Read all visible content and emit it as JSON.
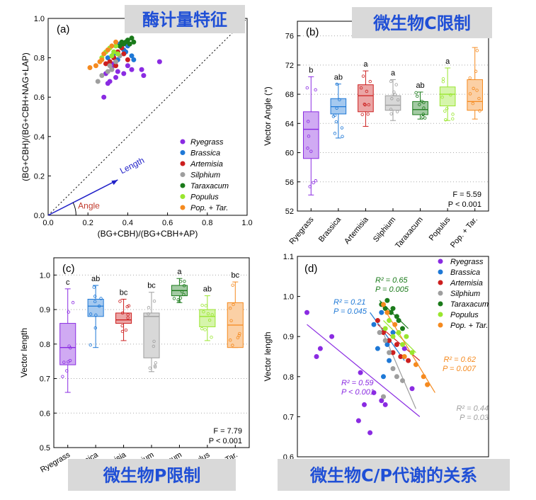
{
  "colors": {
    "Ryegrass": "#8a2be2",
    "Brassica": "#1e78d6",
    "Artemisia": "#cc1f1f",
    "Silphium": "#9e9e9e",
    "Taraxacum": "#1a7a1a",
    "Populus": "#99e62e",
    "Pop. + Tar.": "#f58a1f"
  },
  "species_labels": [
    "Ryegrass",
    "Brassica",
    "Artemisia",
    "Silphium",
    "Taraxacum",
    "Populus",
    "Pop. + Tar."
  ],
  "banners": {
    "a": "酶计量特征",
    "b": "微生物C限制",
    "c": "微生物P限制",
    "d": "微生物C/P代谢的关系"
  },
  "chart_data": [
    {
      "panel": "(a)",
      "type": "scatter",
      "xlabel": "(BG+CBH)/(BG+CBH+AP)",
      "ylabel": "(BG+CBH)/(BG+CBH+NAG+LAP)",
      "xlim": [
        0,
        1.0
      ],
      "ylim": [
        0,
        1.0
      ],
      "xticks": [
        "0.0",
        "0.2",
        "0.4",
        "0.6",
        "0.8",
        "1.0"
      ],
      "yticks": [
        "0.0",
        "0.2",
        "0.4",
        "0.6",
        "0.8",
        "1.0"
      ],
      "annotations": [
        "Length",
        "Angle"
      ],
      "legend_position": "bottom-right",
      "series": [
        {
          "name": "Ryegrass",
          "points": [
            [
              0.28,
              0.6
            ],
            [
              0.3,
              0.67
            ],
            [
              0.29,
              0.72
            ],
            [
              0.32,
              0.75
            ],
            [
              0.33,
              0.77
            ],
            [
              0.35,
              0.73
            ],
            [
              0.38,
              0.72
            ],
            [
              0.4,
              0.76
            ],
            [
              0.42,
              0.74
            ],
            [
              0.47,
              0.74
            ],
            [
              0.48,
              0.71
            ],
            [
              0.56,
              0.78
            ],
            [
              0.31,
              0.68
            ],
            [
              0.34,
              0.7
            ]
          ]
        },
        {
          "name": "Brassica",
          "points": [
            [
              0.3,
              0.8
            ],
            [
              0.33,
              0.82
            ],
            [
              0.35,
              0.79
            ],
            [
              0.38,
              0.84
            ],
            [
              0.4,
              0.86
            ],
            [
              0.42,
              0.81
            ],
            [
              0.43,
              0.79
            ],
            [
              0.36,
              0.87
            ],
            [
              0.39,
              0.83
            ]
          ]
        },
        {
          "name": "Artemisia",
          "points": [
            [
              0.29,
              0.77
            ],
            [
              0.31,
              0.78
            ],
            [
              0.33,
              0.8
            ],
            [
              0.35,
              0.83
            ],
            [
              0.37,
              0.85
            ],
            [
              0.38,
              0.82
            ],
            [
              0.4,
              0.79
            ],
            [
              0.34,
              0.76
            ]
          ]
        },
        {
          "name": "Silphium",
          "points": [
            [
              0.25,
              0.68
            ],
            [
              0.27,
              0.71
            ],
            [
              0.3,
              0.73
            ],
            [
              0.32,
              0.74
            ],
            [
              0.34,
              0.78
            ],
            [
              0.36,
              0.81
            ],
            [
              0.31,
              0.76
            ]
          ]
        },
        {
          "name": "Taraxacum",
          "points": [
            [
              0.36,
              0.86
            ],
            [
              0.38,
              0.87
            ],
            [
              0.39,
              0.88
            ],
            [
              0.4,
              0.89
            ],
            [
              0.41,
              0.87
            ],
            [
              0.42,
              0.9
            ],
            [
              0.43,
              0.88
            ],
            [
              0.37,
              0.88
            ]
          ]
        },
        {
          "name": "Populus",
          "points": [
            [
              0.27,
              0.8
            ],
            [
              0.29,
              0.83
            ],
            [
              0.31,
              0.85
            ],
            [
              0.32,
              0.81
            ],
            [
              0.34,
              0.86
            ],
            [
              0.35,
              0.82
            ],
            [
              0.33,
              0.83
            ]
          ]
        },
        {
          "name": "Pop. + Tar.",
          "points": [
            [
              0.21,
              0.75
            ],
            [
              0.24,
              0.76
            ],
            [
              0.26,
              0.78
            ],
            [
              0.28,
              0.82
            ],
            [
              0.3,
              0.84
            ],
            [
              0.32,
              0.86
            ],
            [
              0.34,
              0.88
            ],
            [
              0.27,
              0.79
            ]
          ]
        }
      ]
    },
    {
      "panel": "(b)",
      "type": "box",
      "ylabel": "Vector Angle (°)",
      "ylim": [
        52,
        78
      ],
      "yticks": [
        "52",
        "56",
        "60",
        "64",
        "68",
        "72",
        "76"
      ],
      "categories": [
        "Ryegrass",
        "Brassica",
        "Artemisia",
        "Silphium",
        "Taraxacum",
        "Populus",
        "Pop. + Tar."
      ],
      "letters": [
        "b",
        "ab",
        "a",
        "a",
        "ab",
        "a",
        ""
      ],
      "boxes": [
        {
          "min": 54.2,
          "q1": 59.2,
          "median": 63.2,
          "q3": 65.6,
          "max": 70.4
        },
        {
          "min": 62.0,
          "q1": 65.3,
          "median": 66.3,
          "q3": 67.4,
          "max": 69.4
        },
        {
          "min": 63.6,
          "q1": 65.6,
          "median": 67.8,
          "q3": 69.3,
          "max": 71.2
        },
        {
          "min": 64.4,
          "q1": 65.8,
          "median": 66.5,
          "q3": 67.8,
          "max": 70.0
        },
        {
          "min": 64.6,
          "q1": 65.2,
          "median": 65.9,
          "q3": 67.0,
          "max": 68.3
        },
        {
          "min": 64.4,
          "q1": 66.4,
          "median": 68.0,
          "q3": 69.0,
          "max": 71.6
        },
        {
          "min": 64.6,
          "q1": 65.8,
          "median": 67.0,
          "q3": 70.0,
          "max": 74.4
        }
      ],
      "stat_F": "F = 5.59",
      "stat_P": "P < 0.001"
    },
    {
      "panel": "(c)",
      "type": "box",
      "ylabel": "Vector length",
      "ylim": [
        0.5,
        1.05
      ],
      "yticks": [
        "0.5",
        "0.6",
        "0.7",
        "0.8",
        "0.9",
        "1.0"
      ],
      "categories": [
        "Ryegrass",
        "Brassica",
        "Artemisia",
        "Silphium",
        "Taraxacum",
        "Populus",
        "Pop. + Tar."
      ],
      "letters": [
        "c",
        "ab",
        "bc",
        "bc",
        "a",
        "ab",
        "bc"
      ],
      "boxes": [
        {
          "min": 0.66,
          "q1": 0.74,
          "median": 0.79,
          "q3": 0.86,
          "max": 0.96
        },
        {
          "min": 0.79,
          "q1": 0.88,
          "median": 0.91,
          "q3": 0.93,
          "max": 0.97
        },
        {
          "min": 0.81,
          "q1": 0.86,
          "median": 0.87,
          "q3": 0.89,
          "max": 0.93
        },
        {
          "min": 0.72,
          "q1": 0.76,
          "median": 0.88,
          "q3": 0.89,
          "max": 0.95
        },
        {
          "min": 0.92,
          "q1": 0.94,
          "median": 0.955,
          "q3": 0.97,
          "max": 0.99
        },
        {
          "min": 0.81,
          "q1": 0.85,
          "median": 0.88,
          "q3": 0.9,
          "max": 0.94
        },
        {
          "min": 0.79,
          "q1": 0.79,
          "median": 0.855,
          "q3": 0.92,
          "max": 0.98
        }
      ],
      "stat_F": "F = 7.79",
      "stat_P": "P < 0.001"
    },
    {
      "panel": "(d)",
      "type": "scatter",
      "ylabel": "Vector length",
      "xlim": [
        0,
        1
      ],
      "ylim": [
        0.6,
        1.1
      ],
      "yticks": [
        "0.6",
        "0.7",
        "0.8",
        "0.9",
        "1.0",
        "1.1"
      ],
      "legend_position": "top-right",
      "series": [
        {
          "name": "Ryegrass",
          "points": [
            [
              0.05,
              0.96
            ],
            [
              0.1,
              0.85
            ],
            [
              0.12,
              0.87
            ],
            [
              0.18,
              0.9
            ],
            [
              0.33,
              0.81
            ],
            [
              0.35,
              0.73
            ],
            [
              0.32,
              0.69
            ],
            [
              0.38,
              0.66
            ],
            [
              0.4,
              0.76
            ],
            [
              0.44,
              0.74
            ],
            [
              0.46,
              0.73
            ],
            [
              0.6,
              0.77
            ],
            [
              0.56,
              0.87
            ]
          ]
        },
        {
          "name": "Brassica",
          "points": [
            [
              0.4,
              0.93
            ],
            [
              0.42,
              0.87
            ],
            [
              0.45,
              0.8
            ],
            [
              0.47,
              0.88
            ],
            [
              0.48,
              0.84
            ],
            [
              0.5,
              0.91
            ],
            [
              0.44,
              0.96
            ]
          ]
        },
        {
          "name": "Artemisia",
          "points": [
            [
              0.42,
              0.94
            ],
            [
              0.45,
              0.91
            ],
            [
              0.48,
              0.89
            ],
            [
              0.5,
              0.86
            ],
            [
              0.52,
              0.88
            ],
            [
              0.54,
              0.85
            ],
            [
              0.58,
              0.84
            ]
          ]
        },
        {
          "name": "Silphium",
          "points": [
            [
              0.43,
              0.91
            ],
            [
              0.46,
              0.89
            ],
            [
              0.48,
              0.86
            ],
            [
              0.5,
              0.82
            ],
            [
              0.52,
              0.8
            ],
            [
              0.55,
              0.79
            ],
            [
              0.45,
              0.75
            ]
          ]
        },
        {
          "name": "Taraxacum",
          "points": [
            [
              0.44,
              0.98
            ],
            [
              0.46,
              0.97
            ],
            [
              0.47,
              0.99
            ],
            [
              0.49,
              0.96
            ],
            [
              0.5,
              0.97
            ],
            [
              0.52,
              0.95
            ],
            [
              0.53,
              0.94
            ],
            [
              0.55,
              0.92
            ]
          ]
        },
        {
          "name": "Populus",
          "points": [
            [
              0.46,
              0.92
            ],
            [
              0.48,
              0.94
            ],
            [
              0.5,
              0.9
            ],
            [
              0.53,
              0.91
            ],
            [
              0.55,
              0.88
            ],
            [
              0.6,
              0.86
            ],
            [
              0.57,
              0.9
            ]
          ]
        },
        {
          "name": "Pop. + Tar.",
          "points": [
            [
              0.45,
              0.98
            ],
            [
              0.47,
              0.96
            ],
            [
              0.51,
              0.93
            ],
            [
              0.56,
              0.85
            ],
            [
              0.62,
              0.83
            ],
            [
              0.66,
              0.8
            ],
            [
              0.68,
              0.78
            ]
          ]
        }
      ],
      "fits": [
        {
          "name": "Ryegrass",
          "r2": "R² = 0.59",
          "p": "P < 0.001",
          "x": [
            0.05,
            0.64
          ],
          "y": [
            0.93,
            0.7
          ]
        },
        {
          "name": "Brassica",
          "r2": "R² = 0.21",
          "p": "P = 0.045",
          "x": [
            0.38,
            0.56
          ],
          "y": [
            0.96,
            0.84
          ]
        },
        {
          "name": "Artemisia",
          "r2": "",
          "p": "",
          "x": [
            0.42,
            0.64
          ],
          "y": [
            0.93,
            0.84
          ]
        },
        {
          "name": "Silphium",
          "r2": "R² = 0.44",
          "p": "P = 0.03",
          "x": [
            0.43,
            0.62
          ],
          "y": [
            0.93,
            0.72
          ]
        },
        {
          "name": "Taraxacum",
          "r2": "R² = 0.65",
          "p": "P = 0.005",
          "x": [
            0.43,
            0.58
          ],
          "y": [
            0.99,
            0.92
          ]
        },
        {
          "name": "Populus",
          "r2": "",
          "p": "",
          "x": [
            0.45,
            0.62
          ],
          "y": [
            0.94,
            0.86
          ]
        },
        {
          "name": "Pop. + Tar.",
          "r2": "R² = 0.62",
          "p": "P = 0.007",
          "x": [
            0.44,
            0.72
          ],
          "y": [
            0.98,
            0.76
          ]
        }
      ]
    }
  ]
}
